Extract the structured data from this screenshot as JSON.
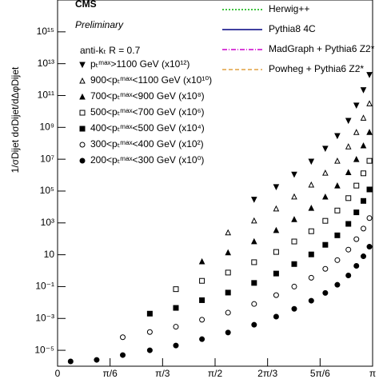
{
  "chart_data": {
    "type": "scatter",
    "title": "CMS",
    "subtitle": "Preliminary",
    "annotation": "anti-kₜ R = 0.7",
    "y_label": "1/σDijet dσDijet/dΔφDijet",
    "log_y": true,
    "xlim": [
      0,
      3.1416
    ],
    "ylim": [
      1e-06,
      1e+17
    ],
    "xticks": [
      0,
      {
        "value": 0.5236,
        "label": "π/6"
      },
      {
        "value": 1.0472,
        "label": "π/3"
      },
      {
        "value": 1.5708,
        "label": "π/2"
      },
      {
        "value": 2.0944,
        "label": "2π/3"
      },
      {
        "value": 2.618,
        "label": "5π/6"
      },
      {
        "value": 3.1416,
        "label": "π"
      }
    ],
    "yticks": [
      {
        "value": 1e-05,
        "label": "10⁻⁵"
      },
      {
        "value": 0.001,
        "label": "10⁻³"
      },
      {
        "value": 0.1,
        "label": "10⁻¹"
      },
      10,
      {
        "value": 1000,
        "label": "10³"
      },
      {
        "value": 100000,
        "label": "10⁵"
      },
      {
        "value": 10000000.0,
        "label": "10⁷"
      },
      {
        "value": 1000000000.0,
        "label": "10⁹"
      },
      {
        "value": 100000000000.0,
        "label": "10¹¹"
      },
      {
        "value": 10000000000000.0,
        "label": "10¹³"
      },
      {
        "value": 1000000000000000.0,
        "label": "10¹⁵"
      }
    ],
    "x": [
      0.13,
      0.39,
      0.65,
      0.92,
      1.18,
      1.44,
      1.7,
      1.96,
      2.18,
      2.36,
      2.53,
      2.67,
      2.79,
      2.9,
      2.98,
      3.05,
      3.11
    ],
    "series": [
      {
        "name": "pₜᵐᵃˣ>1100 GeV (x10¹²)",
        "marker": "triangle-down",
        "filled": true,
        "color": "#000000",
        "values": [
          null,
          null,
          null,
          null,
          null,
          null,
          null,
          29000,
          180000,
          1100000,
          7200000,
          46000000,
          290000000,
          2600000000,
          24000000000,
          220000000000,
          2000000000000
        ]
      },
      {
        "name": "900<pₜᵐᵃˣ<1100 GeV (x10¹⁰)",
        "marker": "triangle-up",
        "filled": false,
        "color": "#000000",
        "values": [
          null,
          null,
          null,
          null,
          null,
          null,
          250,
          1400,
          7900,
          45000,
          250000,
          1400000,
          7900000,
          63000000,
          500000000,
          4000000000,
          32000000000
        ]
      },
      {
        "name": "700<pₜᵐᵃˣ<900 GeV (x10⁸)",
        "marker": "triangle-up",
        "filled": true,
        "color": "#000000",
        "values": [
          null,
          null,
          null,
          null,
          null,
          3.8,
          14,
          69,
          350,
          1700,
          8700,
          44000,
          220000,
          1500000,
          10000000,
          72000000,
          500000000
        ]
      },
      {
        "name": "500<pₜᵐᵃˣ<700 GeV (x10⁶)",
        "marker": "square",
        "filled": false,
        "color": "#000000",
        "values": [
          null,
          null,
          null,
          null,
          0.069,
          0.23,
          0.76,
          3.4,
          15,
          68,
          300,
          1350,
          6000,
          36000,
          220000,
          1300000,
          7900000
        ]
      },
      {
        "name": "400<pₜᵐᵃˣ<500 GeV (x10⁴)",
        "marker": "square",
        "filled": true,
        "color": "#000000",
        "values": [
          null,
          null,
          null,
          0.002,
          0.0046,
          0.014,
          0.042,
          0.17,
          0.66,
          2.6,
          10.5,
          42,
          166,
          870,
          4600,
          24000,
          126000
        ]
      },
      {
        "name": "300<pₜᵐᵃˣ<400 GeV (x10²)",
        "marker": "circle",
        "filled": false,
        "color": "#000000",
        "values": [
          null,
          null,
          6.6e-05,
          0.00014,
          0.0003,
          0.00083,
          0.0023,
          0.0081,
          0.029,
          0.1,
          0.36,
          1.3,
          4.6,
          21,
          95,
          440,
          2000
        ]
      },
      {
        "name": "200<pₜᵐᵃˣ<300 GeV (x10⁰)",
        "marker": "circle",
        "filled": true,
        "color": "#000000",
        "values": [
          2e-06,
          2.5e-06,
          5e-06,
          1e-05,
          2e-05,
          5e-05,
          0.00013,
          0.0004,
          0.0013,
          0.004,
          0.013,
          0.04,
          0.13,
          0.5,
          2,
          8,
          32
        ]
      }
    ],
    "models": [
      {
        "name": "Herwig++",
        "color": "#00b000",
        "dash": "2,2"
      },
      {
        "name": "Pythia8 4C",
        "color": "#000080",
        "dash": "none"
      },
      {
        "name": "MadGraph + Pythia6 Z2*",
        "color": "#cc00cc",
        "dash": "6,2,1,2"
      },
      {
        "name": "Powheg + Pythia6 Z2*",
        "color": "#e0a040",
        "dash": "5,3"
      }
    ]
  }
}
